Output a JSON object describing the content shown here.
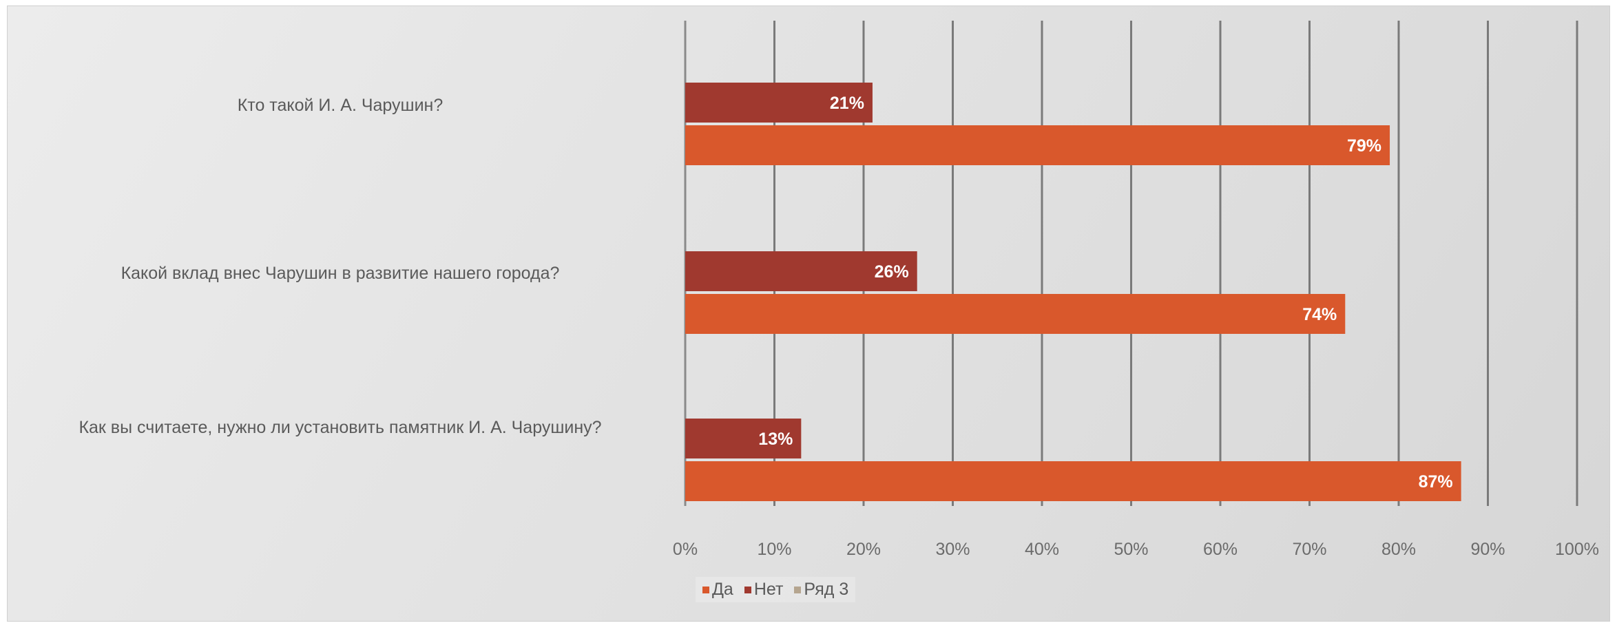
{
  "chart_data": {
    "type": "bar",
    "orientation": "horizontal",
    "categories": [
      "Кто такой И. А. Чарушин?",
      "Какой вклад внес Чарушин в развитие нашего города?",
      "Как вы считаете, нужно ли установить памятник И. А. Чарушину?"
    ],
    "series": [
      {
        "name": "Нет",
        "values": [
          21,
          26,
          13
        ],
        "labels": [
          "21%",
          "26%",
          "13%"
        ],
        "color": "#a0392f"
      },
      {
        "name": "Да",
        "values": [
          79,
          74,
          87
        ],
        "labels": [
          "79%",
          "74%",
          "87%"
        ],
        "color": "#d9582c"
      }
    ],
    "legend": [
      {
        "name": "Да",
        "color": "#d9582c"
      },
      {
        "name": "Нет",
        "color": "#a0392f"
      },
      {
        "name": "Ряд 3",
        "color": "#b5a58f"
      }
    ],
    "x_ticks": [
      "0%",
      "10%",
      "20%",
      "30%",
      "40%",
      "50%",
      "60%",
      "70%",
      "80%",
      "90%",
      "100%"
    ],
    "xlim": [
      0,
      100
    ],
    "grid": true,
    "legend_position": "bottom"
  }
}
